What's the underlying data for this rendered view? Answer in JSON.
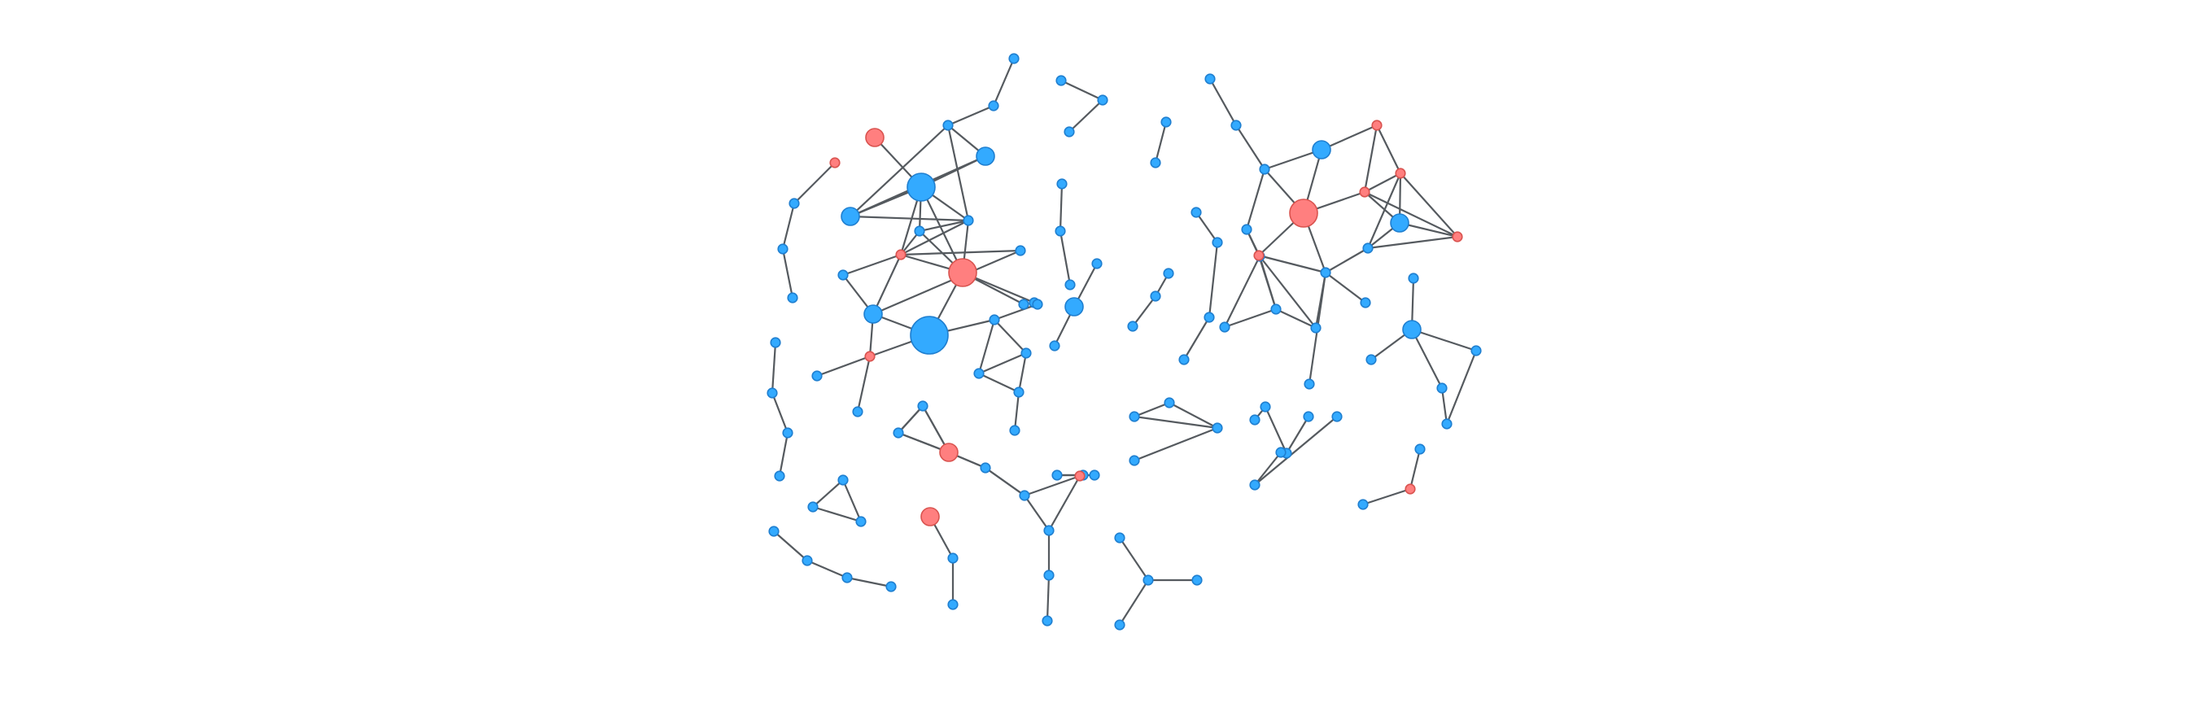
{
  "diagram": {
    "type": "network-graph",
    "colors": {
      "blue": "#33aaff",
      "blue_stroke": "#1f7fd0",
      "red": "#ff7f7f",
      "red_stroke": "#d9534f",
      "edge": "#555a5f"
    },
    "node_kinds": [
      "blue",
      "red"
    ],
    "nodes": [
      {
        "id": "a1",
        "kind": "blue",
        "size": "small"
      },
      {
        "id": "a2",
        "kind": "blue",
        "size": "small"
      },
      {
        "id": "a3",
        "kind": "blue",
        "size": "medium"
      },
      {
        "id": "a4",
        "kind": "blue",
        "size": "small"
      },
      {
        "id": "a5",
        "kind": "red",
        "size": "medium"
      },
      {
        "id": "a6",
        "kind": "blue",
        "size": "large"
      },
      {
        "id": "a7",
        "kind": "blue",
        "size": "medium"
      },
      {
        "id": "a8",
        "kind": "blue",
        "size": "small"
      },
      {
        "id": "a9",
        "kind": "blue",
        "size": "small"
      },
      {
        "id": "a10",
        "kind": "red",
        "size": "small"
      },
      {
        "id": "a11",
        "kind": "red",
        "size": "large"
      },
      {
        "id": "a12",
        "kind": "blue",
        "size": "small"
      },
      {
        "id": "a13",
        "kind": "blue",
        "size": "small"
      },
      {
        "id": "a14",
        "kind": "blue",
        "size": "medium"
      },
      {
        "id": "a15",
        "kind": "blue",
        "size": "xlarge"
      },
      {
        "id": "a16",
        "kind": "red",
        "size": "small"
      },
      {
        "id": "a17",
        "kind": "blue",
        "size": "small"
      },
      {
        "id": "a18",
        "kind": "blue",
        "size": "small"
      },
      {
        "id": "a19",
        "kind": "blue",
        "size": "small"
      },
      {
        "id": "a20",
        "kind": "blue",
        "size": "small"
      },
      {
        "id": "a21",
        "kind": "blue",
        "size": "small"
      },
      {
        "id": "a22",
        "kind": "blue",
        "size": "small"
      },
      {
        "id": "a23",
        "kind": "blue",
        "size": "small"
      },
      {
        "id": "a24",
        "kind": "blue",
        "size": "small"
      },
      {
        "id": "a25",
        "kind": "blue",
        "size": "small"
      },
      {
        "id": "a26",
        "kind": "blue",
        "size": "small"
      },
      {
        "id": "b1",
        "kind": "red",
        "size": "small"
      },
      {
        "id": "b2",
        "kind": "blue",
        "size": "small"
      },
      {
        "id": "b3",
        "kind": "blue",
        "size": "small"
      },
      {
        "id": "b4",
        "kind": "blue",
        "size": "small"
      },
      {
        "id": "c1",
        "kind": "blue",
        "size": "small"
      },
      {
        "id": "c2",
        "kind": "blue",
        "size": "small"
      },
      {
        "id": "c3",
        "kind": "blue",
        "size": "small"
      },
      {
        "id": "c4",
        "kind": "blue",
        "size": "small"
      },
      {
        "id": "d1",
        "kind": "blue",
        "size": "small"
      },
      {
        "id": "d2",
        "kind": "blue",
        "size": "small"
      },
      {
        "id": "d3",
        "kind": "blue",
        "size": "small"
      },
      {
        "id": "e1",
        "kind": "blue",
        "size": "small"
      },
      {
        "id": "e2",
        "kind": "blue",
        "size": "small"
      },
      {
        "id": "e3",
        "kind": "blue",
        "size": "small"
      },
      {
        "id": "e4",
        "kind": "blue",
        "size": "small"
      },
      {
        "id": "f1",
        "kind": "red",
        "size": "medium"
      },
      {
        "id": "f2",
        "kind": "blue",
        "size": "small"
      },
      {
        "id": "f3",
        "kind": "blue",
        "size": "small"
      },
      {
        "id": "g1",
        "kind": "blue",
        "size": "small"
      },
      {
        "id": "g2",
        "kind": "blue",
        "size": "small"
      },
      {
        "id": "g3",
        "kind": "red",
        "size": "medium"
      },
      {
        "id": "g4",
        "kind": "blue",
        "size": "small"
      },
      {
        "id": "g5",
        "kind": "blue",
        "size": "small"
      },
      {
        "id": "h1",
        "kind": "blue",
        "size": "small"
      },
      {
        "id": "h2",
        "kind": "blue",
        "size": "small"
      },
      {
        "id": "h3",
        "kind": "blue",
        "size": "small"
      },
      {
        "id": "i1",
        "kind": "blue",
        "size": "small"
      },
      {
        "id": "i2",
        "kind": "blue",
        "size": "medium"
      },
      {
        "id": "i3",
        "kind": "blue",
        "size": "small"
      },
      {
        "id": "j1",
        "kind": "blue",
        "size": "small"
      },
      {
        "id": "j2",
        "kind": "blue",
        "size": "small"
      },
      {
        "id": "j3",
        "kind": "blue",
        "size": "small"
      },
      {
        "id": "j4",
        "kind": "blue",
        "size": "small"
      },
      {
        "id": "j5",
        "kind": "blue",
        "size": "small"
      },
      {
        "id": "j6",
        "kind": "blue",
        "size": "small"
      },
      {
        "id": "j7",
        "kind": "blue",
        "size": "small"
      },
      {
        "id": "j8",
        "kind": "red",
        "size": "small"
      },
      {
        "id": "j9",
        "kind": "blue",
        "size": "small"
      },
      {
        "id": "j10",
        "kind": "blue",
        "size": "small"
      },
      {
        "id": "j11",
        "kind": "blue",
        "size": "small"
      },
      {
        "id": "k1",
        "kind": "blue",
        "size": "small"
      },
      {
        "id": "k2",
        "kind": "blue",
        "size": "small"
      },
      {
        "id": "k3",
        "kind": "blue",
        "size": "small"
      },
      {
        "id": "l1",
        "kind": "blue",
        "size": "small"
      },
      {
        "id": "l2",
        "kind": "blue",
        "size": "small"
      },
      {
        "id": "l3",
        "kind": "blue",
        "size": "small"
      },
      {
        "id": "m1",
        "kind": "blue",
        "size": "small"
      },
      {
        "id": "m2",
        "kind": "blue",
        "size": "small"
      },
      {
        "id": "n1",
        "kind": "blue",
        "size": "small"
      },
      {
        "id": "n2",
        "kind": "blue",
        "size": "small"
      },
      {
        "id": "n3",
        "kind": "blue",
        "size": "small"
      },
      {
        "id": "n4",
        "kind": "blue",
        "size": "small"
      },
      {
        "id": "o1",
        "kind": "blue",
        "size": "small"
      },
      {
        "id": "o2",
        "kind": "blue",
        "size": "small"
      },
      {
        "id": "o3",
        "kind": "blue",
        "size": "small"
      },
      {
        "id": "o4",
        "kind": "blue",
        "size": "small"
      },
      {
        "id": "p1",
        "kind": "blue",
        "size": "small"
      },
      {
        "id": "p2",
        "kind": "blue",
        "size": "small"
      },
      {
        "id": "p3",
        "kind": "blue",
        "size": "small"
      },
      {
        "id": "p4",
        "kind": "blue",
        "size": "small"
      },
      {
        "id": "p5",
        "kind": "blue",
        "size": "small"
      },
      {
        "id": "p6",
        "kind": "blue",
        "size": "small"
      },
      {
        "id": "p7",
        "kind": "blue",
        "size": "small"
      },
      {
        "id": "p8",
        "kind": "blue",
        "size": "small"
      },
      {
        "id": "p9",
        "kind": "red",
        "size": "small"
      },
      {
        "id": "p10",
        "kind": "blue",
        "size": "small"
      },
      {
        "id": "p11",
        "kind": "red",
        "size": "large"
      },
      {
        "id": "p12",
        "kind": "blue",
        "size": "medium"
      },
      {
        "id": "p13",
        "kind": "red",
        "size": "small"
      },
      {
        "id": "p14",
        "kind": "red",
        "size": "small"
      },
      {
        "id": "p15",
        "kind": "red",
        "size": "small"
      },
      {
        "id": "p16",
        "kind": "blue",
        "size": "small"
      },
      {
        "id": "p17",
        "kind": "red",
        "size": "small"
      },
      {
        "id": "p18",
        "kind": "blue",
        "size": "medium"
      },
      {
        "id": "p19",
        "kind": "blue",
        "size": "small"
      },
      {
        "id": "p20",
        "kind": "blue",
        "size": "small"
      },
      {
        "id": "q1",
        "kind": "blue",
        "size": "small"
      },
      {
        "id": "q2",
        "kind": "blue",
        "size": "medium"
      },
      {
        "id": "q3",
        "kind": "blue",
        "size": "small"
      },
      {
        "id": "q4",
        "kind": "blue",
        "size": "small"
      },
      {
        "id": "q5",
        "kind": "blue",
        "size": "small"
      },
      {
        "id": "q6",
        "kind": "blue",
        "size": "small"
      },
      {
        "id": "r1",
        "kind": "blue",
        "size": "small"
      },
      {
        "id": "r2",
        "kind": "blue",
        "size": "small"
      },
      {
        "id": "r3",
        "kind": "blue",
        "size": "small"
      },
      {
        "id": "r4",
        "kind": "blue",
        "size": "small"
      },
      {
        "id": "s1",
        "kind": "blue",
        "size": "small"
      },
      {
        "id": "s2",
        "kind": "blue",
        "size": "small"
      },
      {
        "id": "s3",
        "kind": "blue",
        "size": "small"
      },
      {
        "id": "t1",
        "kind": "blue",
        "size": "small"
      },
      {
        "id": "t2",
        "kind": "blue",
        "size": "small"
      },
      {
        "id": "t3",
        "kind": "blue",
        "size": "small"
      },
      {
        "id": "t4",
        "kind": "blue",
        "size": "small"
      },
      {
        "id": "u1",
        "kind": "blue",
        "size": "small"
      },
      {
        "id": "u2",
        "kind": "red",
        "size": "small"
      },
      {
        "id": "u3",
        "kind": "blue",
        "size": "small"
      },
      {
        "id": "v1",
        "kind": "blue",
        "size": "small"
      },
      {
        "id": "v2",
        "kind": "blue",
        "size": "small"
      },
      {
        "id": "v3",
        "kind": "blue",
        "size": "small"
      }
    ],
    "edges": [
      [
        "a1",
        "a2"
      ],
      [
        "a2",
        "a4"
      ],
      [
        "a4",
        "a3"
      ],
      [
        "a3",
        "a6"
      ],
      [
        "a5",
        "a6"
      ],
      [
        "a6",
        "a7"
      ],
      [
        "a6",
        "a8"
      ],
      [
        "a6",
        "a9"
      ],
      [
        "a6",
        "a11"
      ],
      [
        "a6",
        "a10"
      ],
      [
        "a7",
        "a4"
      ],
      [
        "a7",
        "a3"
      ],
      [
        "a7",
        "a9"
      ],
      [
        "a4",
        "a9"
      ],
      [
        "a9",
        "a11"
      ],
      [
        "a9",
        "a10"
      ],
      [
        "a9",
        "a8"
      ],
      [
        "a8",
        "a10"
      ],
      [
        "a8",
        "a11"
      ],
      [
        "a10",
        "a11"
      ],
      [
        "a10",
        "a12"
      ],
      [
        "a10",
        "a13"
      ],
      [
        "a10",
        "a14"
      ],
      [
        "a12",
        "a14"
      ],
      [
        "a11",
        "a15"
      ],
      [
        "a11",
        "a19"
      ],
      [
        "a11",
        "a20"
      ],
      [
        "a13",
        "a14"
      ],
      [
        "a14",
        "a15"
      ],
      [
        "a14",
        "a16"
      ],
      [
        "a15",
        "a16"
      ],
      [
        "a15",
        "a21"
      ],
      [
        "a16",
        "a17"
      ],
      [
        "a16",
        "a18"
      ],
      [
        "a21",
        "a22"
      ],
      [
        "a21",
        "a23"
      ],
      [
        "a21",
        "a24"
      ],
      [
        "a23",
        "a24"
      ],
      [
        "a23",
        "a25"
      ],
      [
        "a24",
        "a25"
      ],
      [
        "a25",
        "a26"
      ],
      [
        "b1",
        "b2"
      ],
      [
        "b2",
        "b3"
      ],
      [
        "b3",
        "b4"
      ],
      [
        "c1",
        "c2"
      ],
      [
        "c2",
        "c3"
      ],
      [
        "c3",
        "c4"
      ],
      [
        "d1",
        "d2"
      ],
      [
        "d2",
        "d3"
      ],
      [
        "d3",
        "d1"
      ],
      [
        "e1",
        "e2"
      ],
      [
        "e2",
        "e3"
      ],
      [
        "e3",
        "e4"
      ],
      [
        "f1",
        "f2"
      ],
      [
        "f2",
        "f3"
      ],
      [
        "g1",
        "g2"
      ],
      [
        "g2",
        "g3"
      ],
      [
        "g3",
        "g1"
      ],
      [
        "g3",
        "g4"
      ],
      [
        "g4",
        "g5"
      ],
      [
        "h1",
        "h2"
      ],
      [
        "h2",
        "h3"
      ],
      [
        "i1",
        "i2"
      ],
      [
        "i2",
        "i3"
      ],
      [
        "j1",
        "j2"
      ],
      [
        "j2",
        "j3"
      ],
      [
        "j1",
        "j3"
      ],
      [
        "j3",
        "j4"
      ],
      [
        "j4",
        "j5"
      ],
      [
        "j5",
        "j6"
      ],
      [
        "j6",
        "j7"
      ],
      [
        "j6",
        "j8"
      ],
      [
        "j7",
        "j8"
      ],
      [
        "j7",
        "j9"
      ],
      [
        "j9",
        "j10"
      ],
      [
        "j10",
        "j11"
      ],
      [
        "k1",
        "k2"
      ],
      [
        "k2",
        "k3"
      ],
      [
        "l1",
        "l2"
      ],
      [
        "l2",
        "l3"
      ],
      [
        "m1",
        "m2"
      ],
      [
        "n1",
        "n2"
      ],
      [
        "n2",
        "n3"
      ],
      [
        "n1",
        "n3"
      ],
      [
        "n3",
        "n4"
      ],
      [
        "o1",
        "o2"
      ],
      [
        "o2",
        "o3"
      ],
      [
        "o2",
        "o4"
      ],
      [
        "p1",
        "p2"
      ],
      [
        "p2",
        "p3"
      ],
      [
        "p3",
        "p4"
      ],
      [
        "p3",
        "p11"
      ],
      [
        "p3",
        "p12"
      ],
      [
        "p4",
        "p5"
      ],
      [
        "p4",
        "p9"
      ],
      [
        "p5",
        "p6"
      ],
      [
        "p5",
        "p7"
      ],
      [
        "p5",
        "p8"
      ],
      [
        "p6",
        "p7"
      ],
      [
        "p7",
        "p8"
      ],
      [
        "p8",
        "p10"
      ],
      [
        "p9",
        "p7"
      ],
      [
        "p9",
        "p10"
      ],
      [
        "p9",
        "p11"
      ],
      [
        "p10",
        "p11"
      ],
      [
        "p10",
        "p16"
      ],
      [
        "p10",
        "p20"
      ],
      [
        "p10",
        "p19"
      ],
      [
        "p11",
        "p12"
      ],
      [
        "p11",
        "p14"
      ],
      [
        "p12",
        "p13"
      ],
      [
        "p13",
        "p14"
      ],
      [
        "p13",
        "p15"
      ],
      [
        "p14",
        "p15"
      ],
      [
        "p14",
        "p17"
      ],
      [
        "p14",
        "p18"
      ],
      [
        "p15",
        "p17"
      ],
      [
        "p15",
        "p18"
      ],
      [
        "p15",
        "p16"
      ],
      [
        "p16",
        "p17"
      ],
      [
        "p17",
        "p18"
      ],
      [
        "p18",
        "p16"
      ],
      [
        "q1",
        "q2"
      ],
      [
        "q2",
        "q3"
      ],
      [
        "q2",
        "q4"
      ],
      [
        "q2",
        "q5"
      ],
      [
        "q4",
        "q6"
      ],
      [
        "q5",
        "q6"
      ],
      [
        "r1",
        "r2"
      ],
      [
        "r2",
        "r3"
      ],
      [
        "r3",
        "r4"
      ],
      [
        "s1",
        "s2"
      ],
      [
        "s2",
        "s3"
      ],
      [
        "t1",
        "t2"
      ],
      [
        "t2",
        "t3"
      ],
      [
        "t3",
        "t4"
      ],
      [
        "u1",
        "u2"
      ],
      [
        "u2",
        "u3"
      ],
      [
        "v1",
        "v2"
      ],
      [
        "v2",
        "v3"
      ]
    ]
  }
}
